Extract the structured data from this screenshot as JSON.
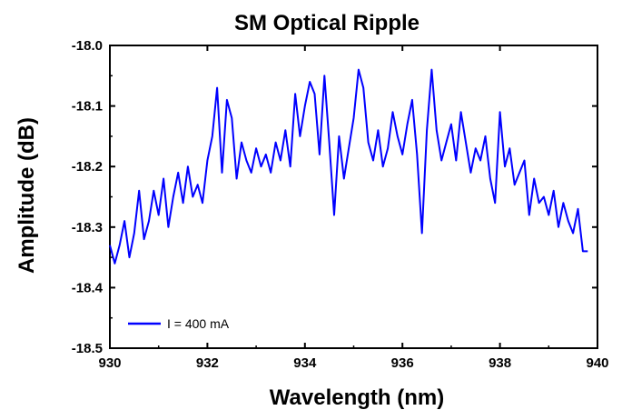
{
  "chart_data": {
    "type": "line",
    "title": "SM Optical Ripple",
    "xlabel": "Wavelength (nm)",
    "ylabel": "Amplitude (dB)",
    "xlim": [
      930,
      940
    ],
    "ylim": [
      -18.5,
      -18.0
    ],
    "x_ticks": [
      930,
      932,
      934,
      936,
      938,
      940
    ],
    "x_tick_labels": [
      "930",
      "932",
      "934",
      "936",
      "938",
      "940"
    ],
    "y_ticks": [
      -18.0,
      -18.1,
      -18.2,
      -18.3,
      -18.4,
      -18.5
    ],
    "y_tick_labels": [
      "-18.0",
      "-18.1",
      "-18.2",
      "-18.3",
      "-18.4",
      "-18.5"
    ],
    "grid": false,
    "legend_position": "bottom-left",
    "series": [
      {
        "name": "I = 400 mA",
        "color": "#0000ff",
        "x": [
          930.0,
          930.1,
          930.2,
          930.3,
          930.4,
          930.5,
          930.6,
          930.7,
          930.8,
          930.9,
          931.0,
          931.1,
          931.2,
          931.3,
          931.4,
          931.5,
          931.6,
          931.7,
          931.8,
          931.9,
          932.0,
          932.1,
          932.2,
          932.3,
          932.4,
          932.5,
          932.6,
          932.7,
          932.8,
          932.9,
          933.0,
          933.1,
          933.2,
          933.3,
          933.4,
          933.5,
          933.6,
          933.7,
          933.8,
          933.9,
          934.0,
          934.1,
          934.2,
          934.3,
          934.4,
          934.5,
          934.6,
          934.7,
          934.8,
          934.9,
          935.0,
          935.1,
          935.2,
          935.3,
          935.4,
          935.5,
          935.6,
          935.7,
          935.8,
          935.9,
          936.0,
          936.1,
          936.2,
          936.3,
          936.4,
          936.5,
          936.6,
          936.7,
          936.8,
          936.9,
          937.0,
          937.1,
          937.2,
          937.3,
          937.4,
          937.5,
          937.6,
          937.7,
          937.8,
          937.9,
          938.0,
          938.1,
          938.2,
          938.3,
          938.4,
          938.5,
          938.6,
          938.7,
          938.8,
          938.9,
          939.0,
          939.1,
          939.2,
          939.3,
          939.4,
          939.5,
          939.6,
          939.7,
          939.8
        ],
        "y": [
          -18.33,
          -18.36,
          -18.33,
          -18.29,
          -18.35,
          -18.31,
          -18.24,
          -18.32,
          -18.29,
          -18.24,
          -18.28,
          -18.22,
          -18.3,
          -18.25,
          -18.21,
          -18.26,
          -18.2,
          -18.25,
          -18.23,
          -18.26,
          -18.19,
          -18.15,
          -18.07,
          -18.21,
          -18.09,
          -18.12,
          -18.22,
          -18.16,
          -18.19,
          -18.21,
          -18.17,
          -18.2,
          -18.18,
          -18.21,
          -18.16,
          -18.19,
          -18.14,
          -18.2,
          -18.08,
          -18.15,
          -18.1,
          -18.06,
          -18.08,
          -18.18,
          -18.05,
          -18.16,
          -18.28,
          -18.15,
          -18.22,
          -18.17,
          -18.12,
          -18.04,
          -18.07,
          -18.16,
          -18.19,
          -18.14,
          -18.2,
          -18.17,
          -18.11,
          -18.15,
          -18.18,
          -18.13,
          -18.09,
          -18.18,
          -18.31,
          -18.14,
          -18.04,
          -18.14,
          -18.19,
          -18.16,
          -18.13,
          -18.19,
          -18.11,
          -18.16,
          -18.21,
          -18.17,
          -18.19,
          -18.15,
          -18.22,
          -18.26,
          -18.11,
          -18.2,
          -18.17,
          -18.23,
          -18.21,
          -18.19,
          -18.28,
          -18.22,
          -18.26,
          -18.25,
          -18.28,
          -18.24,
          -18.3,
          -18.26,
          -18.29,
          -18.31,
          -18.27,
          -18.34,
          -18.34
        ]
      }
    ]
  }
}
